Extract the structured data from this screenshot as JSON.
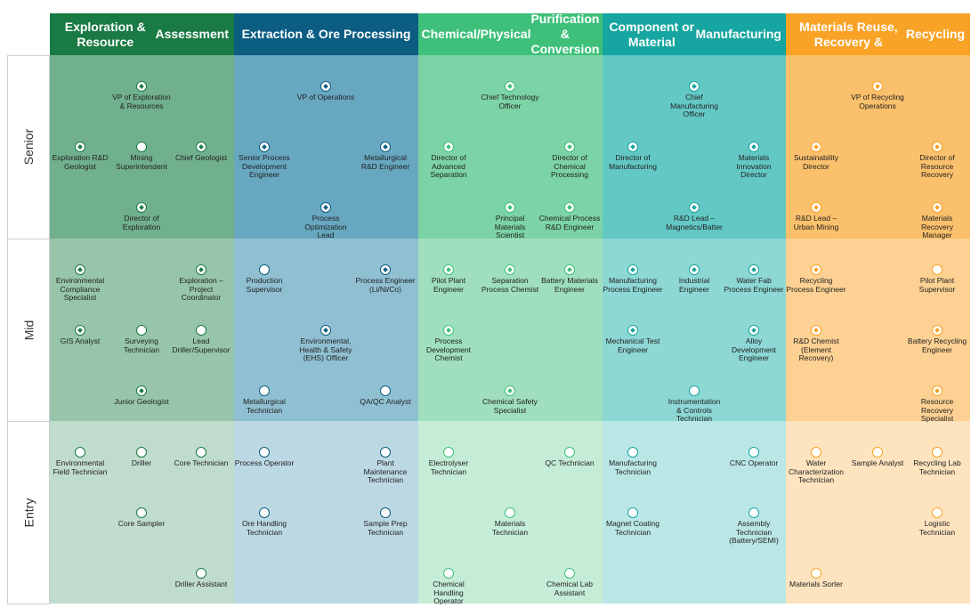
{
  "columns": [
    {
      "key": "explore",
      "title": "Exploration & Resource\nAssessment",
      "header_color": "#1a7a44",
      "color": "#2e8b57"
    },
    {
      "key": "extract",
      "title": "Extraction & Ore Processing",
      "header_color": "#0b5d82",
      "color": "#1f7ea3"
    },
    {
      "key": "chem",
      "title": "Chemical/Physical\nPurification & Conversion",
      "header_color": "#3ec07a",
      "color": "#3fbf7a"
    },
    {
      "key": "comp",
      "title": "Component or Material\nManufacturing",
      "header_color": "#16a5a0",
      "color": "#1aaea8"
    },
    {
      "key": "recy",
      "title": "Materials Reuse, Recovery &\nRecycling",
      "header_color": "#f9a326",
      "color": "#f9a326"
    }
  ],
  "rows": [
    {
      "key": "senior",
      "label": "Senior"
    },
    {
      "key": "mid",
      "label": "Mid"
    },
    {
      "key": "entry",
      "label": "Entry"
    }
  ],
  "nodes": [
    {
      "c": 0,
      "r": 0,
      "col": 1,
      "row": 0,
      "style": "diamond",
      "label": "VP of Exploration\n& Resources"
    },
    {
      "c": 0,
      "r": 0,
      "col": 0,
      "row": 1,
      "style": "diamond",
      "label": "Exploration R&D\nGeologist"
    },
    {
      "c": 0,
      "r": 0,
      "col": 1,
      "row": 1,
      "style": "open",
      "label": "Mining\nSuperintendent"
    },
    {
      "c": 0,
      "r": 0,
      "col": 2,
      "row": 1,
      "style": "diamond",
      "label": "Chief Geologist"
    },
    {
      "c": 0,
      "r": 0,
      "col": 1,
      "row": 2,
      "style": "diamond",
      "label": "Director of\nExploration"
    },
    {
      "c": 1,
      "r": 0,
      "col": 1,
      "row": 0,
      "style": "diamond",
      "label": "VP of Operations"
    },
    {
      "c": 1,
      "r": 0,
      "col": 0,
      "row": 1,
      "style": "diamond",
      "label": "Senior Process\nDevelopment\nEngineer"
    },
    {
      "c": 1,
      "r": 0,
      "col": 2,
      "row": 1,
      "style": "diamond",
      "label": "Metallurgical\nR&D Engineer"
    },
    {
      "c": 1,
      "r": 0,
      "col": 1,
      "row": 2,
      "style": "diamond",
      "label": "Process\nOptimization\nLead"
    },
    {
      "c": 2,
      "r": 0,
      "col": 1,
      "row": 0,
      "style": "diamond",
      "label": "Chief Technology\nOfficer"
    },
    {
      "c": 2,
      "r": 0,
      "col": 0,
      "row": 1,
      "style": "diamond",
      "label": "Director of\nAdvanced\nSeparation"
    },
    {
      "c": 2,
      "r": 0,
      "col": 2,
      "row": 1,
      "style": "diamond",
      "label": "Director of\nChemical\nProcessing"
    },
    {
      "c": 2,
      "r": 0,
      "col": 1,
      "row": 2,
      "style": "diamond",
      "label": "Principal\nMaterials\nScientist"
    },
    {
      "c": 2,
      "r": 0,
      "col": 2,
      "row": 2,
      "style": "diamond",
      "label": "Chemical Process\nR&D Engineer"
    },
    {
      "c": 3,
      "r": 0,
      "col": 1,
      "row": 0,
      "style": "diamond",
      "label": "Chief\nManufacturing\nOfficer"
    },
    {
      "c": 3,
      "r": 0,
      "col": 0,
      "row": 1,
      "style": "diamond",
      "label": "Director of\nManufacturing"
    },
    {
      "c": 3,
      "r": 0,
      "col": 2,
      "row": 1,
      "style": "diamond",
      "label": "Materials\nInnovation\nDirector"
    },
    {
      "c": 3,
      "r": 0,
      "col": 1,
      "row": 2,
      "style": "diamond",
      "label": "R&D Lead –\nMagnetics/Batter"
    },
    {
      "c": 4,
      "r": 0,
      "col": 1,
      "row": 0,
      "style": "diamond",
      "label": "VP of Recycling\nOperations"
    },
    {
      "c": 4,
      "r": 0,
      "col": 0,
      "row": 1,
      "style": "diamond",
      "label": "Sustainability\nDirector"
    },
    {
      "c": 4,
      "r": 0,
      "col": 2,
      "row": 1,
      "style": "diamond",
      "label": "Director of\nResource\nRecovery"
    },
    {
      "c": 4,
      "r": 0,
      "col": 0,
      "row": 2,
      "style": "diamond",
      "label": "R&D Lead –\nUrban Mining"
    },
    {
      "c": 4,
      "r": 0,
      "col": 2,
      "row": 2,
      "style": "diamond",
      "label": "Materials\nRecovery\nManager"
    },
    {
      "c": 0,
      "r": 1,
      "col": 0,
      "row": 0,
      "style": "diamond",
      "label": "Environmental\nCompliance\nSpecialist"
    },
    {
      "c": 0,
      "r": 1,
      "col": 2,
      "row": 0,
      "style": "diamond",
      "label": "Exploration –\nProject\nCoordinator"
    },
    {
      "c": 0,
      "r": 1,
      "col": 0,
      "row": 1,
      "style": "diamond",
      "label": "GIS Analyst"
    },
    {
      "c": 0,
      "r": 1,
      "col": 1,
      "row": 1,
      "style": "open",
      "label": "Surveying\nTechnician"
    },
    {
      "c": 0,
      "r": 1,
      "col": 2,
      "row": 1,
      "style": "open",
      "label": "Lead\nDriller/Supervisor"
    },
    {
      "c": 0,
      "r": 1,
      "col": 1,
      "row": 2,
      "style": "diamond",
      "label": "Junior Geologist"
    },
    {
      "c": 1,
      "r": 1,
      "col": 0,
      "row": 0,
      "style": "open",
      "label": "Production\nSupervisor"
    },
    {
      "c": 1,
      "r": 1,
      "col": 2,
      "row": 0,
      "style": "diamond",
      "label": "Process Engineer\n(Li/Ni/Co)"
    },
    {
      "c": 1,
      "r": 1,
      "col": 1,
      "row": 1,
      "style": "diamond",
      "label": "Environmental,\nHealth & Safety\n(EHS) Officer"
    },
    {
      "c": 1,
      "r": 1,
      "col": 0,
      "row": 2,
      "style": "open",
      "label": "Metallurgical\nTechnician"
    },
    {
      "c": 1,
      "r": 1,
      "col": 2,
      "row": 2,
      "style": "open",
      "label": "QA/QC Analyst"
    },
    {
      "c": 2,
      "r": 1,
      "col": 0,
      "row": 0,
      "style": "diamond",
      "label": "Pilot Plant\nEngineer"
    },
    {
      "c": 2,
      "r": 1,
      "col": 1,
      "row": 0,
      "style": "diamond",
      "label": "Separation\nProcess Chemist"
    },
    {
      "c": 2,
      "r": 1,
      "col": 2,
      "row": 0,
      "style": "diamond",
      "label": "Battery Materials\nEngineer"
    },
    {
      "c": 2,
      "r": 1,
      "col": 0,
      "row": 1,
      "style": "diamond",
      "label": "Process\nDevelopment\nChemist"
    },
    {
      "c": 2,
      "r": 1,
      "col": 1,
      "row": 2,
      "style": "diamond",
      "label": "Chemical Safety\nSpecialist"
    },
    {
      "c": 3,
      "r": 1,
      "col": 0,
      "row": 0,
      "style": "diamond",
      "label": "Manufacturing\nProcess Engineer"
    },
    {
      "c": 3,
      "r": 1,
      "col": 1,
      "row": 0,
      "style": "diamond",
      "label": "Industrial\nEngineer"
    },
    {
      "c": 3,
      "r": 1,
      "col": 2,
      "row": 0,
      "style": "diamond",
      "label": "Water Fab\nProcess Engineer"
    },
    {
      "c": 3,
      "r": 1,
      "col": 0,
      "row": 1,
      "style": "diamond",
      "label": "Mechanical Test\nEngineer"
    },
    {
      "c": 3,
      "r": 1,
      "col": 2,
      "row": 1,
      "style": "diamond",
      "label": "Alloy\nDevelopment\nEngineer"
    },
    {
      "c": 3,
      "r": 1,
      "col": 1,
      "row": 2,
      "style": "open",
      "label": "Instrumentation\n& Controls\nTechnician"
    },
    {
      "c": 4,
      "r": 1,
      "col": 0,
      "row": 0,
      "style": "diamond",
      "label": "Recycling\nProcess Engineer"
    },
    {
      "c": 4,
      "r": 1,
      "col": 2,
      "row": 0,
      "style": "open",
      "label": "Pilot Plant\nSupervisor"
    },
    {
      "c": 4,
      "r": 1,
      "col": 0,
      "row": 1,
      "style": "diamond",
      "label": "R&D Chemist\n(Element\nRecovery)"
    },
    {
      "c": 4,
      "r": 1,
      "col": 2,
      "row": 1,
      "style": "diamond",
      "label": "Battery Recycling\nEngineer"
    },
    {
      "c": 4,
      "r": 1,
      "col": 2,
      "row": 2,
      "style": "diamond",
      "label": "Resource\nRecovery\nSpecialist"
    },
    {
      "c": 0,
      "r": 2,
      "col": 0,
      "row": 0,
      "style": "open",
      "label": "Environmental\nField Technician"
    },
    {
      "c": 0,
      "r": 2,
      "col": 1,
      "row": 0,
      "style": "open",
      "label": "Driller"
    },
    {
      "c": 0,
      "r": 2,
      "col": 2,
      "row": 0,
      "style": "open",
      "label": "Core Technician"
    },
    {
      "c": 0,
      "r": 2,
      "col": 1,
      "row": 1,
      "style": "open",
      "label": "Core Sampler"
    },
    {
      "c": 0,
      "r": 2,
      "col": 2,
      "row": 2,
      "style": "open",
      "label": "Driller Assistant"
    },
    {
      "c": 1,
      "r": 2,
      "col": 0,
      "row": 0,
      "style": "open",
      "label": "Process Operator"
    },
    {
      "c": 1,
      "r": 2,
      "col": 2,
      "row": 0,
      "style": "open",
      "label": "Plant\nMaintenance\nTechnician"
    },
    {
      "c": 1,
      "r": 2,
      "col": 0,
      "row": 1,
      "style": "open",
      "label": "Ore Handling\nTechnician"
    },
    {
      "c": 1,
      "r": 2,
      "col": 2,
      "row": 1,
      "style": "open",
      "label": "Sample Prep\nTechnician"
    },
    {
      "c": 2,
      "r": 2,
      "col": 0,
      "row": 0,
      "style": "open",
      "label": "Electrolyser\nTechnician"
    },
    {
      "c": 2,
      "r": 2,
      "col": 2,
      "row": 0,
      "style": "open",
      "label": "QC Technician"
    },
    {
      "c": 2,
      "r": 2,
      "col": 1,
      "row": 1,
      "style": "open",
      "label": "Materials\nTechnician"
    },
    {
      "c": 2,
      "r": 2,
      "col": 0,
      "row": 2,
      "style": "open",
      "label": "Chemical\nHandling\nOperator"
    },
    {
      "c": 2,
      "r": 2,
      "col": 2,
      "row": 2,
      "style": "open",
      "label": "Chemical Lab\nAssistant"
    },
    {
      "c": 3,
      "r": 2,
      "col": 0,
      "row": 0,
      "style": "open",
      "label": "Manufacturing\nTechnician"
    },
    {
      "c": 3,
      "r": 2,
      "col": 2,
      "row": 0,
      "style": "open",
      "label": "CNC Operator"
    },
    {
      "c": 3,
      "r": 2,
      "col": 0,
      "row": 1,
      "style": "open",
      "label": "Magnet Coating\nTechnician"
    },
    {
      "c": 3,
      "r": 2,
      "col": 2,
      "row": 1,
      "style": "open",
      "label": "Assembly\nTechnician\n(Battery/SEMI)"
    },
    {
      "c": 4,
      "r": 2,
      "col": 0,
      "row": 0,
      "style": "open",
      "label": "Water\nCharacterization\nTechnician"
    },
    {
      "c": 4,
      "r": 2,
      "col": 1,
      "row": 0,
      "style": "open",
      "label": "Sample Analyst"
    },
    {
      "c": 4,
      "r": 2,
      "col": 2,
      "row": 0,
      "style": "open",
      "label": "Recycling Lab\nTechnician"
    },
    {
      "c": 4,
      "r": 2,
      "col": 2,
      "row": 1,
      "style": "open",
      "label": "Logistic\nTechnician"
    },
    {
      "c": 4,
      "r": 2,
      "col": 0,
      "row": 2,
      "style": "open",
      "label": "Materials Sorter"
    }
  ]
}
